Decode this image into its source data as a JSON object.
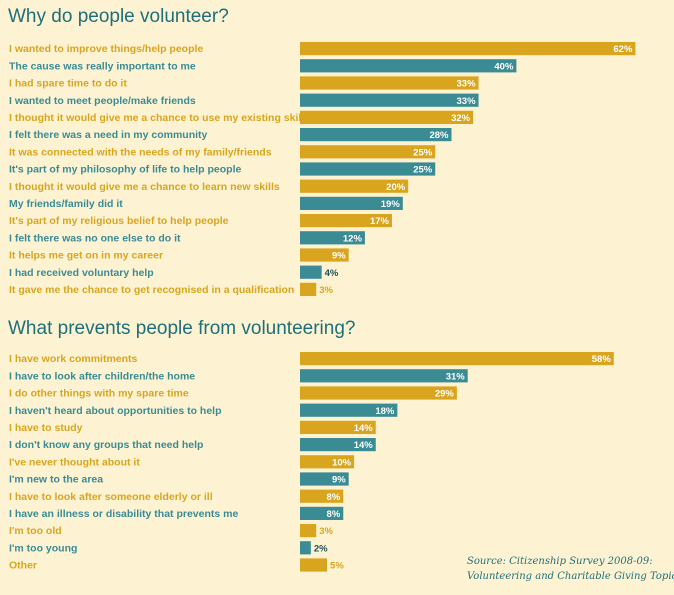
{
  "colors": {
    "gold": "#d9a51e",
    "teal": "#3a8b93",
    "bg": "#fdf3d3",
    "title": "#1f6f7a"
  },
  "source": {
    "line1": "Source: Citizenship Survey 2008-09:",
    "line2": "Volunteering and Charitable Giving Topic"
  },
  "chart_data": [
    {
      "type": "bar",
      "title": "Why do people volunteer?",
      "orientation": "horizontal",
      "categories": [
        "I wanted to improve things/help people",
        "The cause was really important to me",
        "I had spare time to do it",
        "I wanted to meet people/make friends",
        "I thought it would give me a chance to use my existing skills",
        "I felt there was a need in my community",
        "It was connected with the needs of my family/friends",
        "It's part of my philosophy of life to help people",
        "I thought it would give me a chance to learn new skills",
        "My friends/family did it",
        "It's part of my religious belief to help people",
        "I felt there was no one else to do it",
        "It helps me get on in my career",
        "I had received voluntary help",
        "It gave me the chance to get recognised in a qualification"
      ],
      "values": [
        62,
        40,
        33,
        33,
        32,
        28,
        25,
        25,
        20,
        19,
        17,
        12,
        9,
        4,
        3
      ],
      "value_labels": [
        "62%",
        "40%",
        "33%",
        "33%",
        "32%",
        "28%",
        "25%",
        "25%",
        "20%",
        "19%",
        "17%",
        "12%",
        "9%",
        "4%",
        "3%"
      ]
    },
    {
      "type": "bar",
      "title": "What prevents people from volunteering?",
      "orientation": "horizontal",
      "categories": [
        "I have work commitments",
        "I have to look after children/the home",
        "I do other things with my spare time",
        "I haven't heard about opportunities to help",
        "I have to study",
        "I don't know any groups that need help",
        "I've never thought about it",
        "I'm new to the area",
        "I have to look after someone elderly or ill",
        "I have an illness or disability that prevents me",
        "I'm too old",
        "I'm too young",
        "Other"
      ],
      "values": [
        58,
        31,
        29,
        18,
        14,
        14,
        10,
        9,
        8,
        8,
        3,
        2,
        5
      ],
      "value_labels": [
        "58%",
        "31%",
        "29%",
        "18%",
        "14%",
        "14%",
        "10%",
        "9%",
        "8%",
        "8%",
        "3%",
        "2%",
        "5%"
      ]
    }
  ]
}
